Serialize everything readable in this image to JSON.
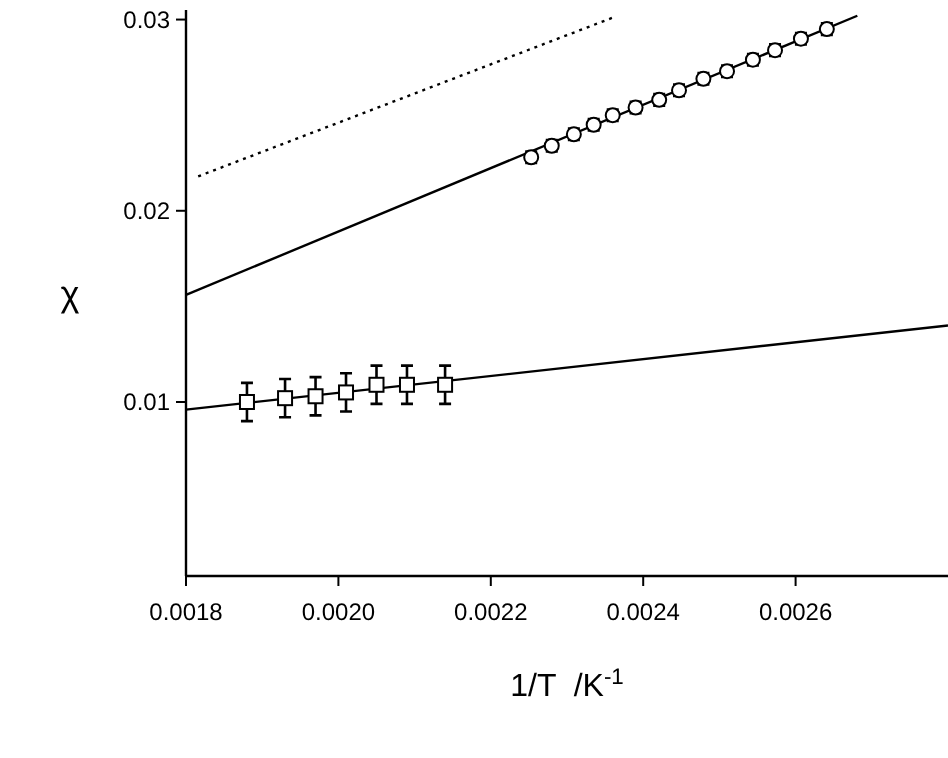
{
  "chart_data": {
    "type": "scatter",
    "xlabel": "1/T  /K$^{-1}$",
    "ylabel": "χ",
    "xlim": [
      0.0018,
      0.0028
    ],
    "ylim": [
      0.0009,
      0.0305
    ],
    "xticks": [
      {
        "value": 0.0018,
        "label": "0.0018"
      },
      {
        "value": 0.002,
        "label": "0.0020"
      },
      {
        "value": 0.0022,
        "label": "0.0022"
      },
      {
        "value": 0.0024,
        "label": "0.0024"
      },
      {
        "value": 0.0026,
        "label": "0.0026"
      }
    ],
    "yticks": [
      0.01,
      0.02,
      0.03
    ],
    "series": [
      {
        "type": "line",
        "color": "#000000",
        "line_style": "dotted",
        "marker": "none",
        "x": [
          0.001816,
          0.00236
        ],
        "values": [
          0.0218,
          0.0301
        ]
      },
      {
        "type": "line",
        "color": "#000000",
        "line_style": "solid",
        "marker": "none",
        "x": [
          0.0018,
          0.002681
        ],
        "values": [
          0.0156,
          0.0302
        ]
      },
      {
        "type": "line",
        "color": "#000000",
        "line_style": "solid",
        "marker": "none",
        "x": [
          0.0018,
          0.0028
        ],
        "values": [
          0.0096,
          0.014
        ]
      },
      {
        "color": "#000000",
        "marker": "square",
        "x": [
          0.00188,
          0.00193,
          0.00197,
          0.00201,
          0.00205,
          0.00209,
          0.00214
        ],
        "values": [
          0.01,
          0.0102,
          0.0103,
          0.0105,
          0.0109,
          0.0109,
          0.0109
        ],
        "errors": [
          0.001,
          0.001,
          0.001,
          0.001,
          0.001,
          0.001,
          0.001
        ]
      },
      {
        "color": "#000000",
        "marker": "circle",
        "x": [
          0.002253,
          0.00228,
          0.002309,
          0.002335,
          0.00236,
          0.00239,
          0.002421,
          0.002447,
          0.002479,
          0.00251,
          0.002544,
          0.002573,
          0.002607,
          0.002641
        ],
        "values": [
          0.0228,
          0.0234,
          0.024,
          0.0245,
          0.025,
          0.0254,
          0.0258,
          0.0263,
          0.0269,
          0.0273,
          0.0279,
          0.0284,
          0.029,
          0.0295
        ],
        "errors": [
          0.0003,
          0.0003,
          0.0003,
          0.0003,
          0.0003,
          0.0003,
          0.0003,
          0.0003,
          0.0003,
          0.0003,
          0.0003,
          0.0003,
          0.0003,
          0.0003
        ]
      }
    ]
  }
}
